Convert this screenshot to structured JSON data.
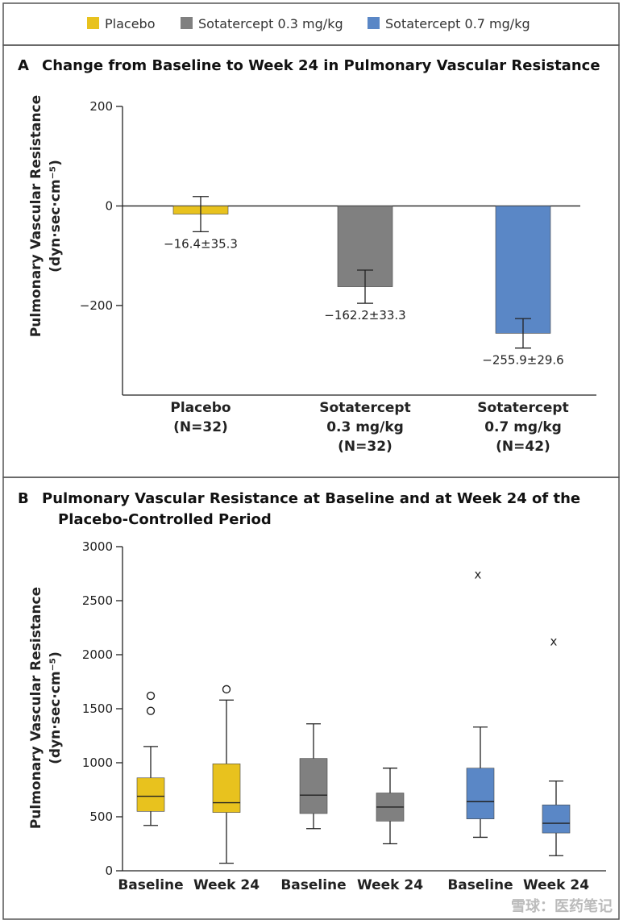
{
  "legend": {
    "items": [
      {
        "label": "Placebo",
        "color": "#E8C21E"
      },
      {
        "label": "Sotatercept 0.3 mg/kg",
        "color": "#808080"
      },
      {
        "label": "Sotatercept 0.7 mg/kg",
        "color": "#5A87C6"
      }
    ]
  },
  "watermark": "雪球：医药笔记",
  "chart_data": [
    {
      "type": "bar",
      "panel_letter": "A",
      "title": "Change from Baseline to Week 24 in Pulmonary Vascular Resistance",
      "ylabel_line1": "Pulmonary Vascular Resistance",
      "ylabel_line2": "(dyn·sec·cm⁻⁵)",
      "ylim": [
        -380,
        200
      ],
      "yticks": [
        200,
        0,
        -200
      ],
      "ytick_labels": [
        "200",
        "0",
        "−200"
      ],
      "categories": [
        {
          "line1": "Placebo",
          "line2": "(N=32)",
          "line3": ""
        },
        {
          "line1": "Sotatercept",
          "line2": "0.3 mg/kg",
          "line3": "(N=32)"
        },
        {
          "line1": "Sotatercept",
          "line2": "0.7 mg/kg",
          "line3": "(N=42)"
        }
      ],
      "values": [
        -16.4,
        -162.2,
        -255.9
      ],
      "errors": [
        35.3,
        33.3,
        29.6
      ],
      "labels": [
        "−16.4±35.3",
        "−162.2±33.3",
        "−255.9±29.6"
      ],
      "colors": [
        "#E8C21E",
        "#808080",
        "#5A87C6"
      ]
    },
    {
      "type": "box",
      "panel_letter": "B",
      "title_line1": "Pulmonary Vascular Resistance at Baseline and at Week 24 of the",
      "title_line2": "Placebo-Controlled Period",
      "ylabel_line1": "Pulmonary Vascular Resistance",
      "ylabel_line2": "(dyn·sec·cm⁻⁵)",
      "ylim": [
        0,
        3000
      ],
      "yticks": [
        0,
        500,
        1000,
        1500,
        2000,
        2500,
        3000
      ],
      "ytick_labels": [
        "0",
        "500",
        "1000",
        "1500",
        "2000",
        "2500",
        "3000"
      ],
      "boxes": [
        {
          "label": "Baseline",
          "group": 0,
          "color": "#E8C21E",
          "min": 420,
          "q1": 550,
          "median": 690,
          "q3": 860,
          "max": 1150,
          "outliers": [
            1480,
            1620
          ],
          "outlier_marker": "o"
        },
        {
          "label": "Week 24",
          "group": 0,
          "color": "#E8C21E",
          "min": 70,
          "q1": 540,
          "median": 630,
          "q3": 990,
          "max": 1580,
          "outliers": [
            1680
          ],
          "outlier_marker": "o"
        },
        {
          "label": "Baseline",
          "group": 1,
          "color": "#808080",
          "min": 390,
          "q1": 530,
          "median": 700,
          "q3": 1040,
          "max": 1360,
          "outliers": [],
          "outlier_marker": "o"
        },
        {
          "label": "Week 24",
          "group": 1,
          "color": "#808080",
          "min": 250,
          "q1": 460,
          "median": 590,
          "q3": 720,
          "max": 950,
          "outliers": [],
          "outlier_marker": "o"
        },
        {
          "label": "Baseline",
          "group": 2,
          "color": "#5A87C6",
          "min": 310,
          "q1": 480,
          "median": 640,
          "q3": 950,
          "max": 1330,
          "outliers": [
            2750
          ],
          "outlier_marker": "x"
        },
        {
          "label": "Week 24",
          "group": 2,
          "color": "#5A87C6",
          "min": 140,
          "q1": 350,
          "median": 440,
          "q3": 610,
          "max": 830,
          "outliers": [
            2130
          ],
          "outlier_marker": "x"
        }
      ]
    }
  ]
}
